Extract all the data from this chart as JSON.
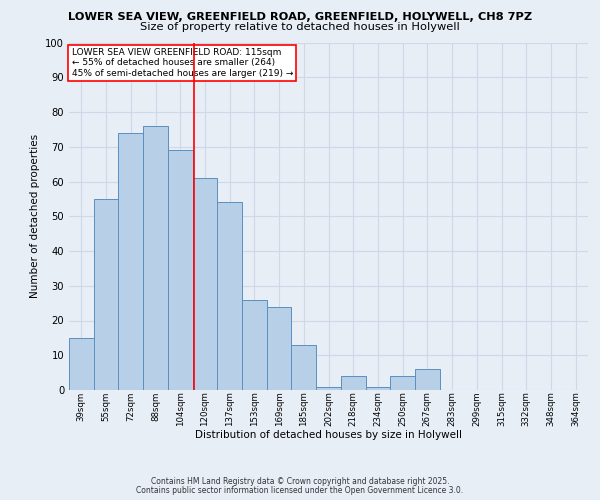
{
  "title_line1": "LOWER SEA VIEW, GREENFIELD ROAD, GREENFIELD, HOLYWELL, CH8 7PZ",
  "title_line2": "Size of property relative to detached houses in Holywell",
  "xlabel": "Distribution of detached houses by size in Holywell",
  "ylabel": "Number of detached properties",
  "categories": [
    "39sqm",
    "55sqm",
    "72sqm",
    "88sqm",
    "104sqm",
    "120sqm",
    "137sqm",
    "153sqm",
    "169sqm",
    "185sqm",
    "202sqm",
    "218sqm",
    "234sqm",
    "250sqm",
    "267sqm",
    "283sqm",
    "299sqm",
    "315sqm",
    "332sqm",
    "348sqm",
    "364sqm"
  ],
  "values": [
    15,
    55,
    74,
    76,
    69,
    61,
    54,
    26,
    24,
    13,
    1,
    4,
    1,
    4,
    6,
    0,
    0,
    0,
    0,
    0,
    0
  ],
  "bar_color": "#b8cfe8",
  "bar_edge_color": "#5a8fc0",
  "grid_color": "#d0d8e8",
  "background_color": "#e8eef6",
  "red_line_x": 4.545,
  "annotation_text_line1": "LOWER SEA VIEW GREENFIELD ROAD: 115sqm",
  "annotation_text_line2": "← 55% of detached houses are smaller (264)",
  "annotation_text_line3": "45% of semi-detached houses are larger (219) →",
  "ylim": [
    0,
    100
  ],
  "yticks": [
    0,
    10,
    20,
    30,
    40,
    50,
    60,
    70,
    80,
    90,
    100
  ],
  "footer1": "Contains HM Land Registry data © Crown copyright and database right 2025.",
  "footer2": "Contains public sector information licensed under the Open Government Licence 3.0."
}
